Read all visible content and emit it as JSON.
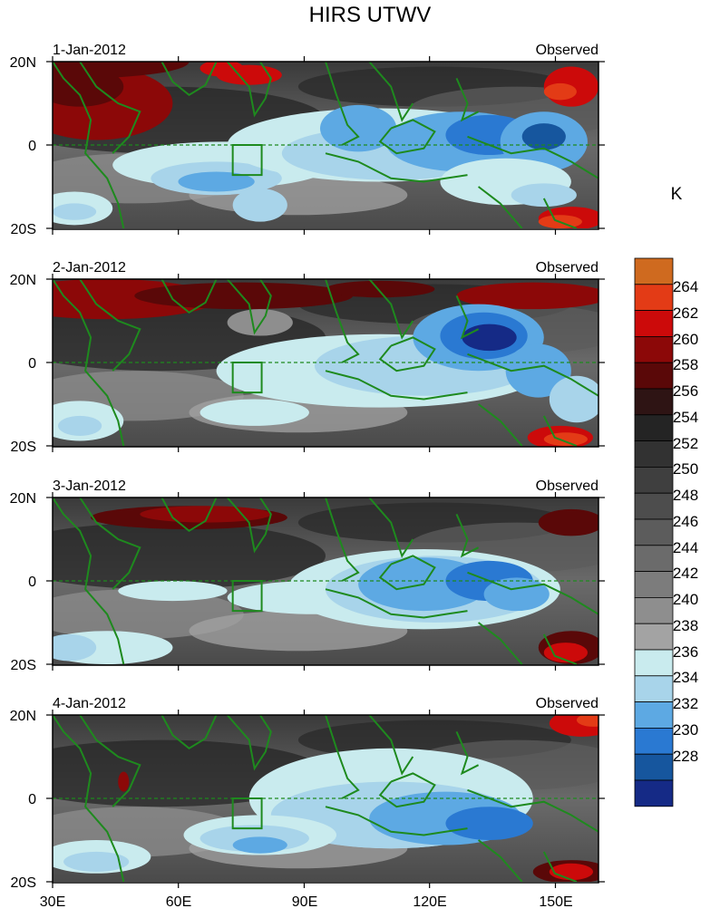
{
  "title": "HIRS UTWV",
  "colorbar": {
    "unit": "K",
    "labels": [
      "264",
      "262",
      "260",
      "258",
      "256",
      "254",
      "252",
      "250",
      "248",
      "246",
      "244",
      "242",
      "240",
      "238",
      "236",
      "234",
      "232",
      "230",
      "228"
    ],
    "colors": [
      "#cf6a1f",
      "#e33b16",
      "#cc0a0a",
      "#8c0808",
      "#5a0808",
      "#2e1414",
      "#242424",
      "#323232",
      "#3f3f3f",
      "#4d4d4d",
      "#5c5c5c",
      "#6b6b6b",
      "#7c7c7c",
      "#8e8e8e",
      "#a3a3a3",
      "#c9ebee",
      "#a8d4ea",
      "#5da9e3",
      "#2a79d2",
      "#16569e",
      "#152a86"
    ]
  },
  "lon_ticks": [
    "30E",
    "60E",
    "90E",
    "120E",
    "150E"
  ],
  "lat_ticks": [
    "20N",
    "0",
    "20S"
  ],
  "land_color": "#1e8a1e",
  "panels": [
    {
      "date": "1-Jan-2012",
      "label": "Observed"
    },
    {
      "date": "2-Jan-2012",
      "label": "Observed"
    },
    {
      "date": "3-Jan-2012",
      "label": "Observed"
    },
    {
      "date": "4-Jan-2012",
      "label": "Observed"
    }
  ]
}
